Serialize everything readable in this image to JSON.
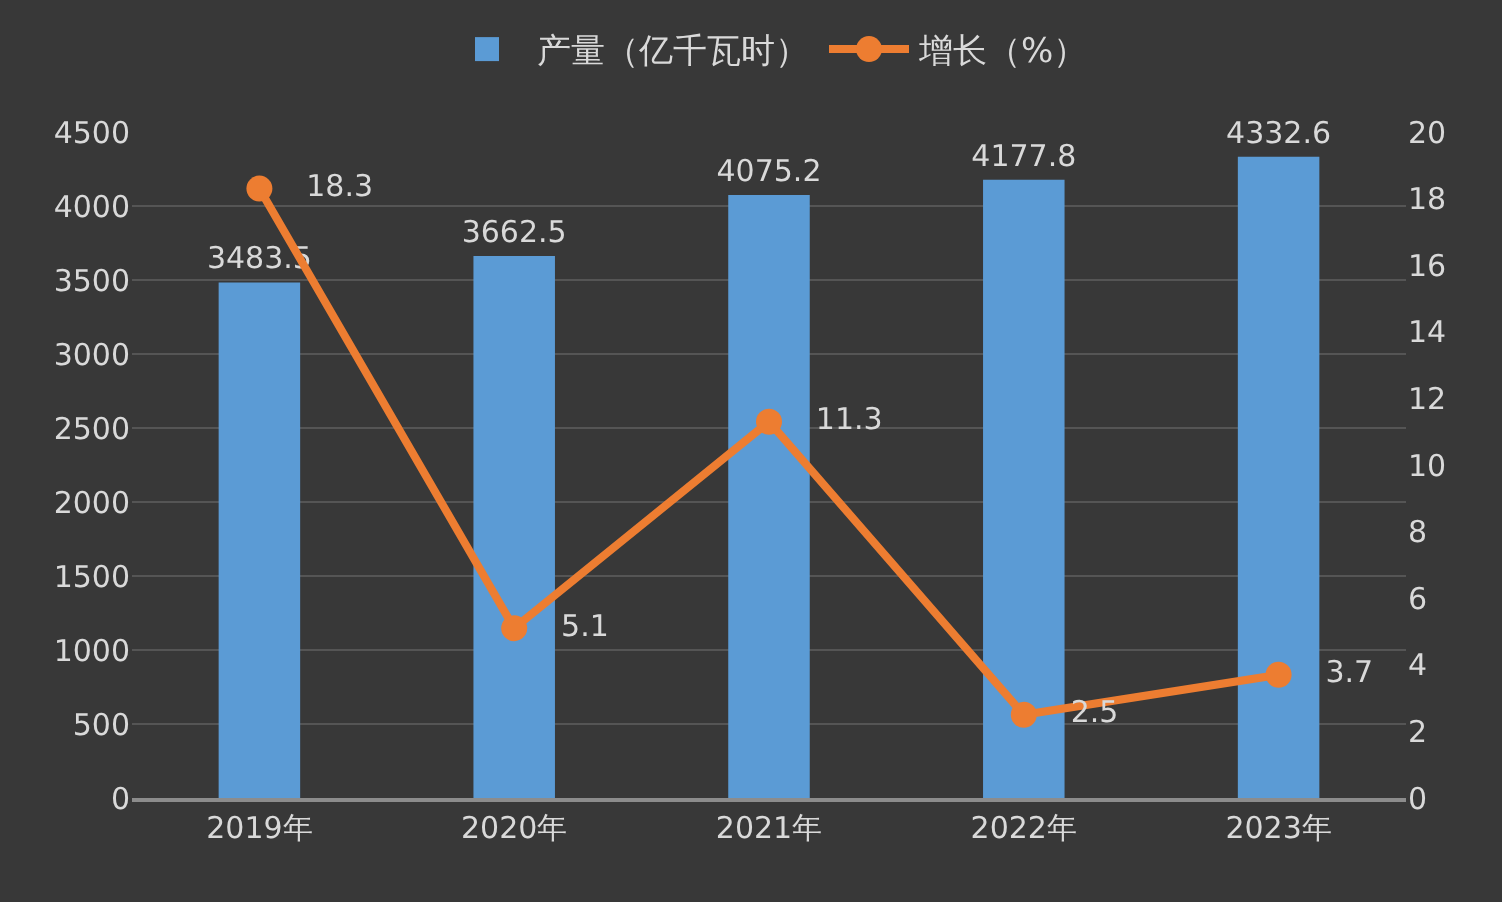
{
  "chart_data": {
    "type": "bar",
    "categories": [
      "2019年",
      "2020年",
      "2021年",
      "2022年",
      "2023年"
    ],
    "series": [
      {
        "name": "产量（亿千瓦时）",
        "color": "#5b9bd5",
        "values": [
          3483.5,
          3662.5,
          4075.2,
          4177.8,
          4332.6
        ]
      },
      {
        "name": "增长（%）",
        "type": "line",
        "axis": "y2",
        "color": "#ed7d31",
        "values": [
          18.3,
          5.1,
          11.3,
          2.5,
          3.7
        ]
      }
    ],
    "ylim": [
      0,
      4500
    ],
    "yticks": [
      0,
      500,
      1000,
      1500,
      2000,
      2500,
      3000,
      3500,
      4000,
      4500
    ],
    "y2lim": [
      0,
      20
    ],
    "y2ticks": [
      0,
      2,
      4,
      6,
      8,
      10,
      12,
      14,
      16,
      18,
      20
    ],
    "grid": "y",
    "legend": "top",
    "data_labels": true,
    "marker": "circle"
  }
}
